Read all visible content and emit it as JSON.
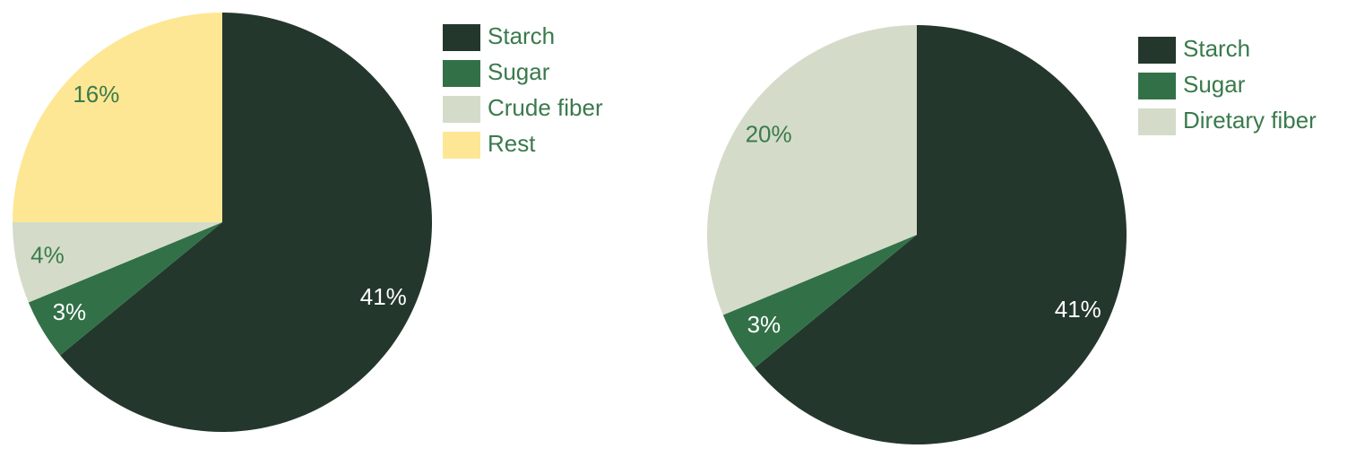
{
  "chart_data": [
    {
      "type": "pie",
      "categories": [
        "Starch",
        "Sugar",
        "Crude fiber",
        "Rest"
      ],
      "values": [
        41,
        3,
        4,
        16
      ],
      "value_labels": [
        "41%",
        "3%",
        "4%",
        "16%"
      ],
      "colors": [
        "#24372c",
        "#327148",
        "#d4dcc9",
        "#fde794"
      ]
    },
    {
      "type": "pie",
      "categories": [
        "Starch",
        "Sugar",
        "Diretary fiber"
      ],
      "values": [
        41,
        3,
        20
      ],
      "value_labels": [
        "41%",
        "3%",
        "20%"
      ],
      "colors": [
        "#24372c",
        "#327148",
        "#d4dcc9"
      ]
    }
  ]
}
